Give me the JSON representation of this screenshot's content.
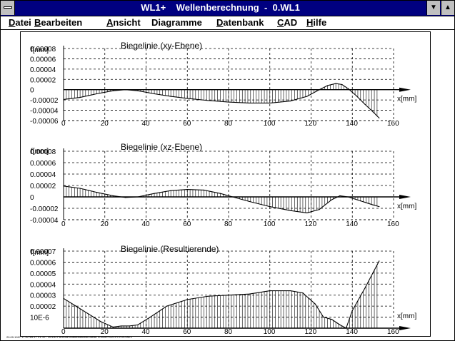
{
  "window": {
    "title": "WL1+    Wellenberechnung  -  0.WL1",
    "minimize_glyph": "▼",
    "maximize_glyph": "▲"
  },
  "menu": [
    {
      "label": "Datei",
      "mnemonic": "D"
    },
    {
      "label": "Bearbeiten",
      "mnemonic": "B"
    },
    {
      "label": "Ansicht",
      "mnemonic": "A"
    },
    {
      "label": "Diagramme",
      "mnemonic": "g"
    },
    {
      "label": "Datenbank",
      "mnemonic": "D"
    },
    {
      "label": "CAD",
      "mnemonic": "C"
    },
    {
      "label": "Hilfe",
      "mnemonic": "H"
    }
  ],
  "footer_text": "20.09.1997  17:02   WL1+ V1.10 - 20/183    Fa.mode Antriebstechnik Berlin    H:\\WIPPSU\\TP\\TP2\\0.WL1",
  "chart_data": [
    {
      "type": "line",
      "title": "Biegelinie (xy-Ebene)",
      "ylabel": "f[mm]",
      "xlabel": "x[mm]",
      "xlim": [
        0,
        160
      ],
      "ylim": [
        -6e-05,
        8e-05
      ],
      "yticks": [
        "0.00008",
        "0.00006",
        "0.00004",
        "0.00002",
        "0",
        "-0.00002",
        "-0.00004",
        "-0.00006"
      ],
      "xticks": [
        "0",
        "20",
        "40",
        "60",
        "80",
        "100",
        "120",
        "140",
        "160"
      ],
      "x": [
        0,
        8,
        16,
        24,
        30,
        36,
        44,
        52,
        60,
        70,
        80,
        90,
        100,
        110,
        118,
        124,
        128,
        132,
        135,
        138,
        142,
        146,
        150,
        153
      ],
      "values": [
        -1.9e-05,
        -1.5e-05,
        -8e-06,
        -2e-06,
        0,
        -2e-06,
        -8e-06,
        -1.3e-05,
        -1.7e-05,
        -2.1e-05,
        -2.4e-05,
        -2.6e-05,
        -2.6e-05,
        -2.2e-05,
        -1.3e-05,
        0,
        8e-06,
        1.2e-05,
        1e-05,
        2e-06,
        -1.2e-05,
        -2.8e-05,
        -4.3e-05,
        -5.5e-05
      ]
    },
    {
      "type": "line",
      "title": "Biegelinie (xz-Ebene)",
      "ylabel": "f[mm]",
      "xlabel": "x[mm]",
      "xlim": [
        0,
        160
      ],
      "ylim": [
        -4e-05,
        8e-05
      ],
      "yticks": [
        "0.00008",
        "0.00006",
        "0.00004",
        "0.00002",
        "0",
        "-0.00002",
        "-0.00004"
      ],
      "xticks": [
        "0",
        "20",
        "40",
        "60",
        "80",
        "100",
        "120",
        "140",
        "160"
      ],
      "x": [
        0,
        8,
        16,
        24,
        30,
        36,
        44,
        52,
        60,
        68,
        76,
        82,
        90,
        100,
        110,
        118,
        124,
        130,
        134,
        138,
        144,
        150,
        153
      ],
      "values": [
        1.9e-05,
        1.5e-05,
        8e-06,
        2e-06,
        -1e-06,
        0,
        6e-06,
        1.1e-05,
        1.3e-05,
        1.2e-05,
        6e-06,
        0,
        -8e-06,
        -1.7e-05,
        -2.4e-05,
        -2.8e-05,
        -2.2e-05,
        -5e-06,
        2e-06,
        0,
        -7e-06,
        -1.4e-05,
        -1.7e-05
      ]
    },
    {
      "type": "line",
      "title": "Biegelinie (Resultierende)",
      "ylabel": "f[mm]",
      "xlabel": "x[mm]",
      "xlim": [
        0,
        160
      ],
      "ylim": [
        0,
        7e-05
      ],
      "yticks": [
        "0.00007",
        "0.00006",
        "0.00005",
        "0.00004",
        "0.00003",
        "0.00002",
        "10E-6"
      ],
      "xticks": [
        "0",
        "20",
        "40",
        "60",
        "80",
        "100",
        "120",
        "140",
        "160"
      ],
      "x": [
        0,
        6,
        12,
        18,
        24,
        28,
        32,
        36,
        42,
        50,
        60,
        70,
        80,
        90,
        100,
        110,
        116,
        122,
        126,
        130,
        134,
        137,
        140,
        146,
        153
      ],
      "values": [
        2.7e-05,
        2e-05,
        1.3e-05,
        6e-06,
        1e-06,
        2e-06,
        2e-06,
        3e-06,
        1e-05,
        2e-05,
        2.6e-05,
        2.9e-05,
        3e-05,
        3.1e-05,
        3.4e-05,
        3.4e-05,
        3.2e-05,
        2.2e-05,
        1e-05,
        8e-06,
        3e-06,
        0,
        1.6e-05,
        3.6e-05,
        6.1e-05
      ]
    }
  ]
}
